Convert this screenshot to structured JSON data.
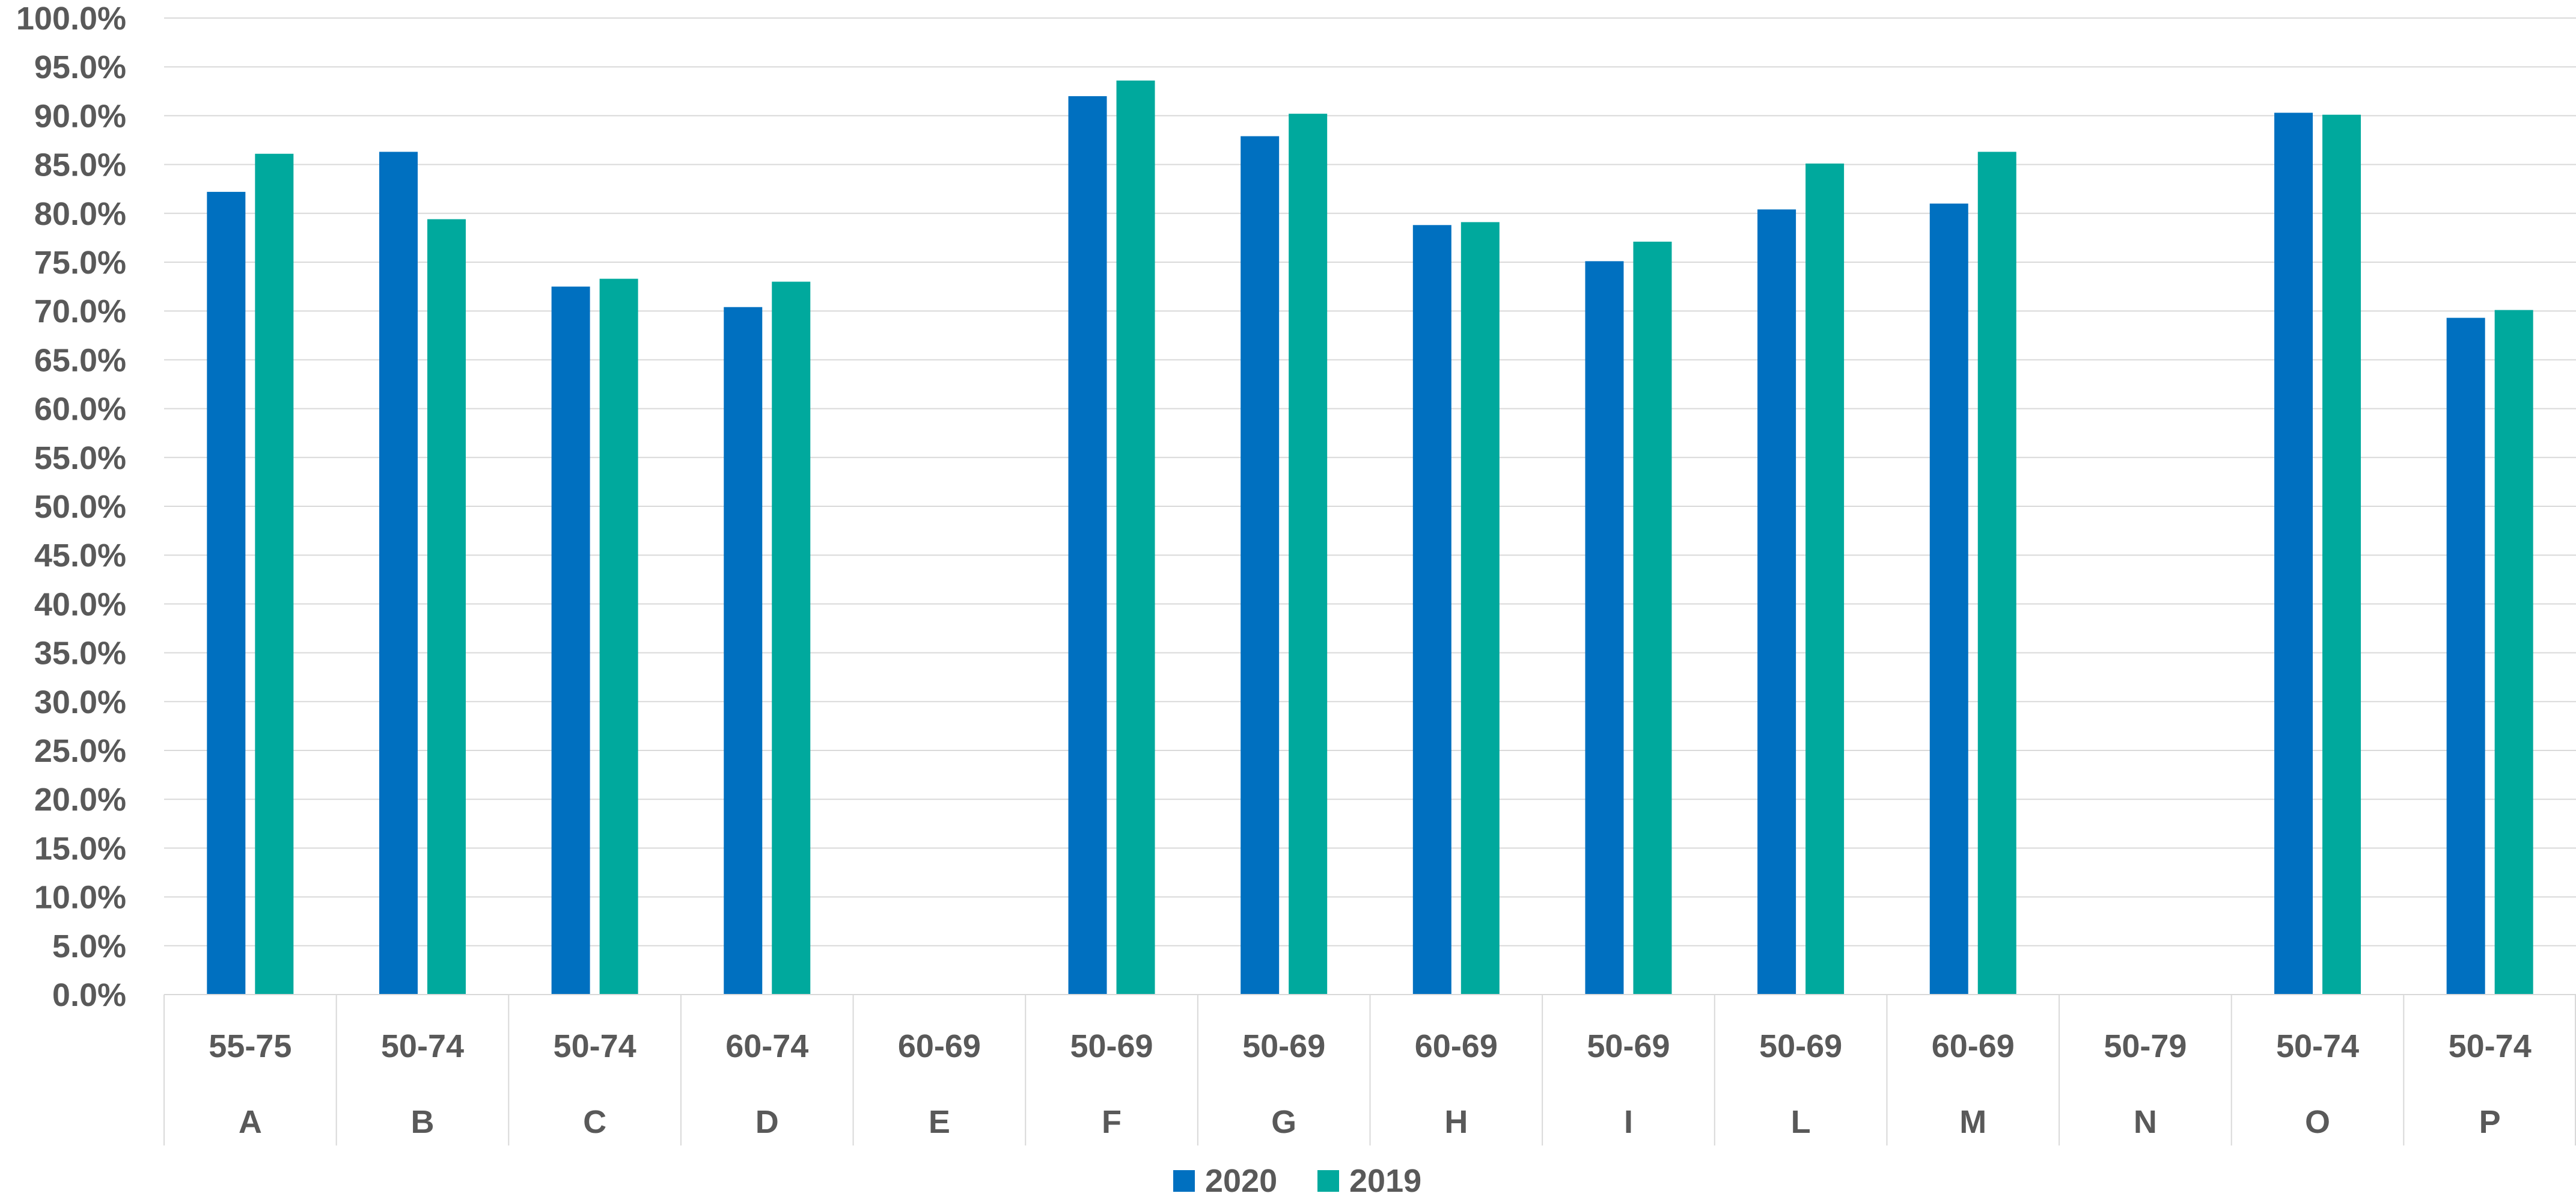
{
  "chart_data": {
    "type": "bar",
    "categories": [
      "A",
      "B",
      "C",
      "D",
      "E",
      "F",
      "G",
      "H",
      "I",
      "L",
      "M",
      "N",
      "O",
      "P"
    ],
    "age_ranges": [
      "55-75",
      "50-74",
      "50-74",
      "60-74",
      "60-69",
      "50-69",
      "50-69",
      "60-69",
      "50-69",
      "50-69",
      "60-69",
      "50-79",
      "50-74",
      "50-74"
    ],
    "series": [
      {
        "name": "2020",
        "color": "#0070C0",
        "values": [
          82.2,
          86.3,
          72.5,
          70.4,
          null,
          92.0,
          87.9,
          78.8,
          75.1,
          80.4,
          81.0,
          null,
          90.3,
          69.3
        ]
      },
      {
        "name": "2019",
        "color": "#00A99D",
        "values": [
          86.1,
          79.4,
          73.3,
          73.0,
          null,
          93.6,
          90.2,
          79.1,
          77.1,
          85.1,
          86.3,
          null,
          90.1,
          70.1
        ]
      }
    ],
    "title": "",
    "xlabel": "",
    "ylabel": "",
    "ylim": [
      0,
      100
    ],
    "y_ticks": [
      "0.0%",
      "5.0%",
      "10.0%",
      "15.0%",
      "20.0%",
      "25.0%",
      "30.0%",
      "35.0%",
      "40.0%",
      "45.0%",
      "50.0%",
      "55.0%",
      "60.0%",
      "65.0%",
      "70.0%",
      "75.0%",
      "80.0%",
      "85.0%",
      "90.0%",
      "95.0%",
      "100.0%"
    ],
    "grid": true,
    "legend_position": "bottom-center"
  }
}
